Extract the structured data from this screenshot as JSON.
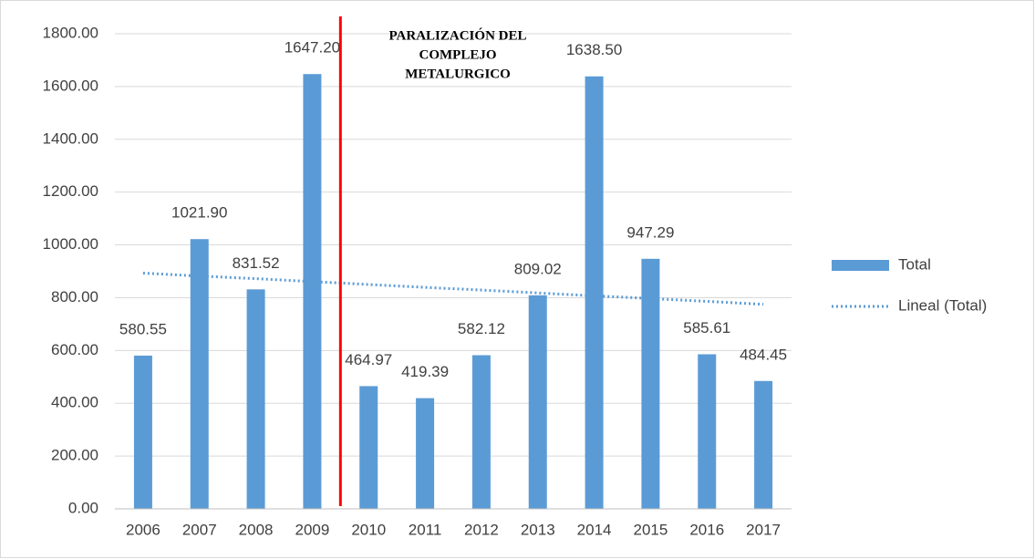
{
  "chart_data": {
    "type": "bar",
    "categories": [
      "2006",
      "2007",
      "2008",
      "2009",
      "2010",
      "2011",
      "2012",
      "2013",
      "2014",
      "2015",
      "2016",
      "2017"
    ],
    "series": [
      {
        "name": "Total",
        "color": "#5b9bd5",
        "values": [
          580.55,
          1021.9,
          831.52,
          1647.2,
          464.97,
          419.39,
          582.12,
          809.02,
          1638.5,
          947.29,
          585.61,
          484.45
        ],
        "value_labels": [
          "580.55",
          "1021.90",
          "831.52",
          "1647.20",
          "464.97",
          "419.39",
          "582.12",
          "809.02",
          "1638.50",
          "947.29",
          "585.61",
          "484.45"
        ]
      },
      {
        "name": "Lineal (Total)",
        "color": "#5b9bd5",
        "trendline": true,
        "values": [
          893,
          882,
          872,
          861,
          850,
          839,
          829,
          818,
          807,
          797,
          786,
          775
        ]
      }
    ],
    "annotation": [
      "PARALIZACIÓN DEL",
      "COMPLEJO",
      "METALURGICO"
    ],
    "ylim": [
      0,
      1800
    ],
    "yticks": [
      {
        "value": 0,
        "label": "0.00"
      },
      {
        "value": 200,
        "label": "200.00"
      },
      {
        "value": 400,
        "label": "400.00"
      },
      {
        "value": 600,
        "label": "600.00"
      },
      {
        "value": 800,
        "label": "800.00"
      },
      {
        "value": 1000,
        "label": "1000.00"
      },
      {
        "value": 1200,
        "label": "1200.00"
      },
      {
        "value": 1400,
        "label": "1400.00"
      },
      {
        "value": 1600,
        "label": "1600.00"
      },
      {
        "value": 1800,
        "label": "1800.00"
      }
    ],
    "grid": true,
    "legend": "right"
  }
}
